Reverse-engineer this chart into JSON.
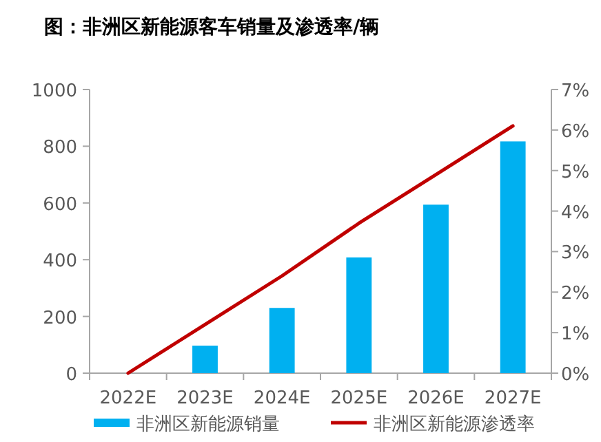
{
  "chart_data": {
    "type": "bar",
    "title": "图：非洲区新能源客车销量及渗透率/辆",
    "categories": [
      "2022E",
      "2023E",
      "2024E",
      "2025E",
      "2026E",
      "2027E"
    ],
    "series": [
      {
        "name": "非洲区新能源销量",
        "color": "#00b0f0",
        "values": [
          0,
          97,
          230,
          408,
          594,
          817
        ]
      },
      {
        "name": "非洲区新能源渗透率",
        "type": "line",
        "axis": "y2",
        "color": "#c00000",
        "values": [
          0,
          1.2,
          2.4,
          3.7,
          4.9,
          6.1
        ]
      }
    ],
    "ylim": [
      0,
      1000
    ],
    "yticks": [
      0,
      200,
      400,
      600,
      800,
      1000
    ],
    "y2lim": [
      0,
      7
    ],
    "y2ticks": [
      {
        "value": 0,
        "label": "0%"
      },
      {
        "value": 1,
        "label": "1%"
      },
      {
        "value": 2,
        "label": "2%"
      },
      {
        "value": 3,
        "label": "3%"
      },
      {
        "value": 4,
        "label": "4%"
      },
      {
        "value": 5,
        "label": "5%"
      },
      {
        "value": 6,
        "label": "6%"
      },
      {
        "value": 7,
        "label": "7%"
      }
    ],
    "legend": "bottom",
    "grid": false
  }
}
